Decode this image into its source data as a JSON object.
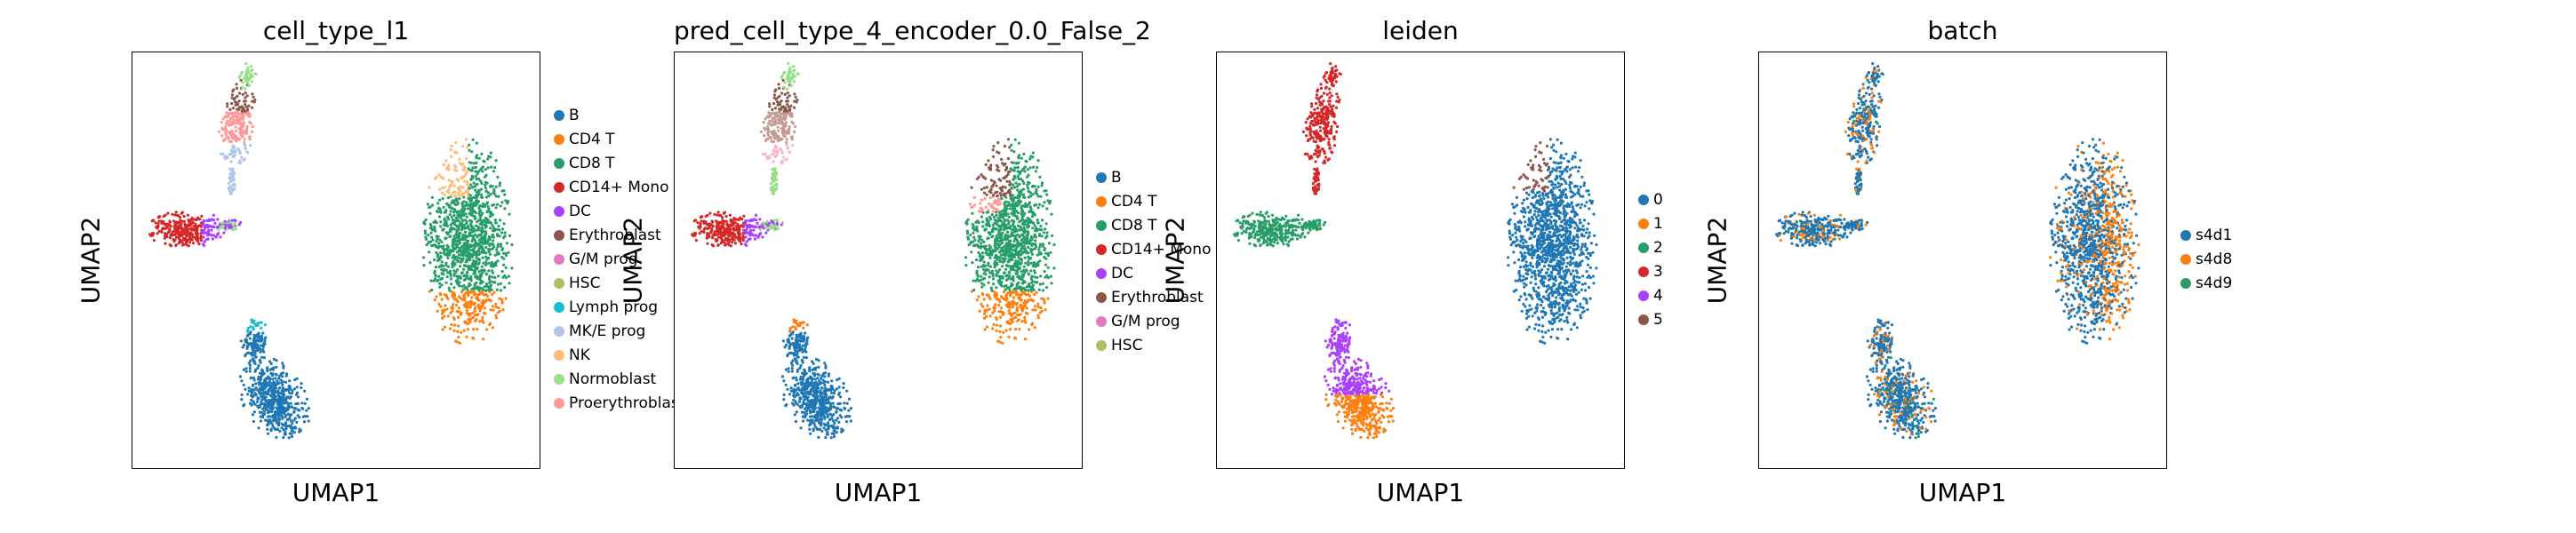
{
  "chart_data": [
    {
      "type": "scatter",
      "title": "cell_type_l1",
      "xlabel": "UMAP1",
      "ylabel": "UMAP2",
      "grid": false,
      "legend_position": "right",
      "legend": [
        {
          "label": "B",
          "color": "#1f77b4"
        },
        {
          "label": "CD4 T",
          "color": "#ff7f0e"
        },
        {
          "label": "CD8 T",
          "color": "#279e68"
        },
        {
          "label": "CD14+ Mono",
          "color": "#d62728"
        },
        {
          "label": "DC",
          "color": "#aa40fc"
        },
        {
          "label": "Erythroblast",
          "color": "#8c564b"
        },
        {
          "label": "G/M prog",
          "color": "#e377c2"
        },
        {
          "label": "HSC",
          "color": "#b5bd61"
        },
        {
          "label": "Lymph prog",
          "color": "#17becf"
        },
        {
          "label": "MK/E prog",
          "color": "#aec7e8"
        },
        {
          "label": "NK",
          "color": "#ffbb78"
        },
        {
          "label": "Normoblast",
          "color": "#98df8a"
        },
        {
          "label": "Proerythroblast",
          "color": "#ff9896"
        }
      ]
    },
    {
      "type": "scatter",
      "title": "pred_cell_type_4_encoder_0.0_False_2",
      "xlabel": "UMAP1",
      "ylabel": "UMAP2",
      "grid": false,
      "legend_position": "right",
      "legend": [
        {
          "label": "B",
          "color": "#1f77b4"
        },
        {
          "label": "CD4 T",
          "color": "#ff7f0e"
        },
        {
          "label": "CD8 T",
          "color": "#279e68"
        },
        {
          "label": "CD14+ Mono",
          "color": "#d62728"
        },
        {
          "label": "DC",
          "color": "#aa40fc"
        },
        {
          "label": "Erythroblast",
          "color": "#8c564b"
        },
        {
          "label": "G/M prog",
          "color": "#e377c2"
        },
        {
          "label": "HSC",
          "color": "#b5bd61"
        }
      ]
    },
    {
      "type": "scatter",
      "title": "leiden",
      "xlabel": "UMAP1",
      "ylabel": "UMAP2",
      "grid": false,
      "legend_position": "right",
      "legend": [
        {
          "label": "0",
          "color": "#1f77b4"
        },
        {
          "label": "1",
          "color": "#ff7f0e"
        },
        {
          "label": "2",
          "color": "#279e68"
        },
        {
          "label": "3",
          "color": "#d62728"
        },
        {
          "label": "4",
          "color": "#aa40fc"
        },
        {
          "label": "5",
          "color": "#8c564b"
        }
      ]
    },
    {
      "type": "scatter",
      "title": "batch",
      "xlabel": "UMAP1",
      "ylabel": "UMAP2",
      "grid": false,
      "legend_position": "right",
      "legend": [
        {
          "label": "s4d1",
          "color": "#1f77b4"
        },
        {
          "label": "s4d8",
          "color": "#ff7f0e"
        },
        {
          "label": "s4d9",
          "color": "#279e68"
        }
      ]
    }
  ]
}
